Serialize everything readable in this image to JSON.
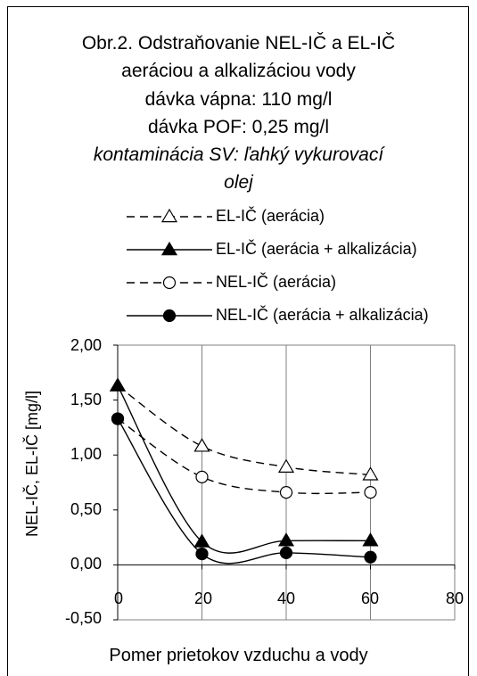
{
  "chart_data": {
    "type": "line",
    "title": [
      "Obr.2. Odstraňovanie NEL-IČ a EL-IČ",
      "aeráciou a alkalizáciou vody",
      "dávka vápna: 110 mg/l",
      "dávka POF: 0,25 mg/l",
      "kontaminácia SV: ľahký vykurovací",
      "olej"
    ],
    "xlabel": "Pomer prietokov vzduchu a vody",
    "ylabel": "NEL-IČ, EL-IČ [mg/l]",
    "xlim": [
      0,
      80
    ],
    "ylim": [
      -0.5,
      2.0
    ],
    "xticks": [
      "0",
      "20",
      "40",
      "60",
      "80"
    ],
    "yticks": [
      "2,00",
      "1,50",
      "1,00",
      "0,50",
      "0,00",
      "-0,50"
    ],
    "legend_position": "top",
    "grid": "vertical",
    "series": [
      {
        "name": "EL-IČ (aerácia)",
        "marker": "triangle-open",
        "dash": true,
        "x": [
          0,
          20,
          40,
          60
        ],
        "values": [
          1.63,
          1.08,
          0.89,
          0.82
        ]
      },
      {
        "name": "EL-IČ (aerácia + alkalizácia)",
        "marker": "triangle-filled",
        "dash": false,
        "x": [
          0,
          20,
          40,
          60
        ],
        "values": [
          1.63,
          0.21,
          0.22,
          0.22
        ]
      },
      {
        "name": "NEL-IČ (aerácia)",
        "marker": "circle-open",
        "dash": true,
        "x": [
          0,
          20,
          40,
          60
        ],
        "values": [
          1.33,
          0.8,
          0.66,
          0.66
        ]
      },
      {
        "name": "NEL-IČ (aerácia + alkalizácia)",
        "marker": "circle-filled",
        "dash": false,
        "x": [
          0,
          20,
          40,
          60
        ],
        "values": [
          1.33,
          0.1,
          0.11,
          0.07
        ]
      }
    ]
  }
}
